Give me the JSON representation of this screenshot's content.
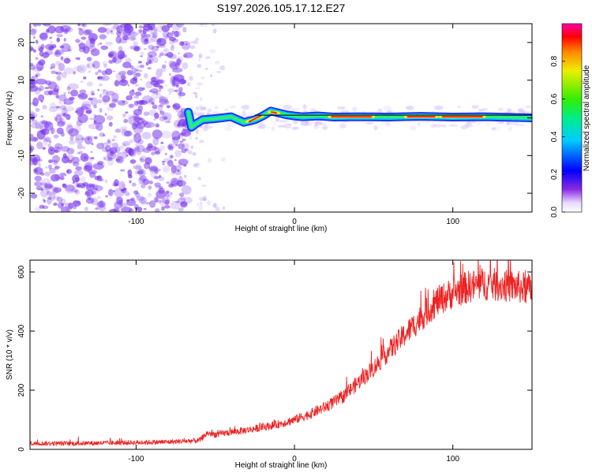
{
  "title": "S197.2026.105.17.12.E27",
  "colors": {
    "snr_line": "#ee2222",
    "speckle": "#7733ee",
    "frame": "#000000"
  },
  "colorbar": {
    "label": "Normalized spectral amplitude",
    "ticks": [
      "0.0",
      "0.2",
      "0.4",
      "0.6",
      "0.8"
    ],
    "tick_values": [
      0.0,
      0.2,
      0.4,
      0.6,
      0.8
    ],
    "range": [
      0,
      1
    ]
  },
  "chart_data": [
    {
      "type": "heatmap",
      "title": "S197.2026.105.17.12.E27",
      "xlabel": "Height of straight line (km)",
      "ylabel": "Frequency (Hz)",
      "xlim": [
        -167,
        150
      ],
      "ylim": [
        -25,
        25
      ],
      "xticks": [
        "-100",
        "0",
        "100"
      ],
      "xtick_values": [
        -100,
        0,
        100
      ],
      "yticks": [
        "20",
        "10",
        "0",
        "-10",
        "-20"
      ],
      "ytick_values": [
        20,
        10,
        0,
        -10,
        -20
      ],
      "noise_region_x": [
        -167,
        -67
      ],
      "trace": {
        "x": [
          -67,
          -65,
          -62,
          -58,
          -50,
          -40,
          -32,
          -25,
          -20,
          -15,
          -12,
          -5,
          0,
          5,
          15,
          25,
          40,
          60,
          80,
          100,
          120,
          150
        ],
        "freq": [
          1.5,
          -2.5,
          -1.5,
          -0.5,
          -0.2,
          0.3,
          -1.2,
          -0.5,
          0.5,
          1.8,
          1.5,
          0.8,
          0.5,
          0.3,
          0.5,
          0.2,
          0.3,
          0.2,
          0.4,
          0.2,
          0.3,
          0.0
        ]
      },
      "peak_intervals": [
        [
          -30,
          -20
        ],
        [
          -16,
          -10
        ],
        [
          22,
          50
        ],
        [
          70,
          90
        ],
        [
          92,
          120
        ]
      ]
    },
    {
      "type": "line",
      "xlabel": "Height of straight line (km)",
      "ylabel": "SNR (10 * v/v)",
      "xlim": [
        -167,
        150
      ],
      "ylim": [
        0,
        640
      ],
      "xticks": [
        "-100",
        "0",
        "100"
      ],
      "xtick_values": [
        -100,
        0,
        100
      ],
      "yticks": [
        "0",
        "200",
        "400",
        "600"
      ],
      "ytick_values": [
        0,
        200,
        400,
        600
      ],
      "series": [
        {
          "name": "SNR",
          "x": [
            -167,
            -140,
            -110,
            -80,
            -60,
            -55,
            -50,
            -40,
            -30,
            -20,
            -10,
            0,
            10,
            20,
            30,
            40,
            50,
            60,
            70,
            80,
            90,
            100,
            110,
            120,
            130,
            140,
            150
          ],
          "y": [
            20,
            20,
            22,
            25,
            30,
            55,
            50,
            58,
            65,
            75,
            85,
            100,
            120,
            145,
            175,
            225,
            275,
            335,
            390,
            445,
            500,
            530,
            550,
            560,
            555,
            550,
            540
          ]
        }
      ]
    }
  ]
}
